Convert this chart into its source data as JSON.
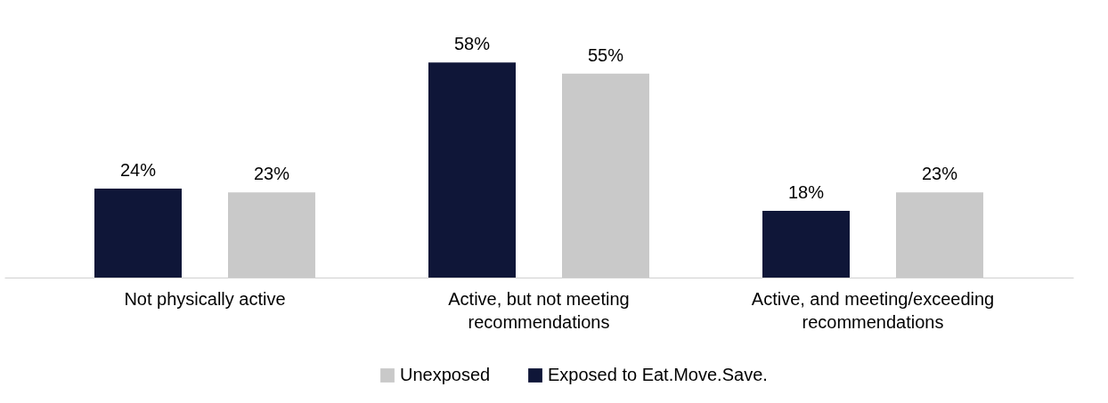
{
  "chart_data": {
    "type": "bar",
    "categories": [
      "Not physically active",
      "Active, but not meeting recommendations",
      "Active, and meeting/exceeding recommendations"
    ],
    "series": [
      {
        "name": "Exposed to Eat.Move.Save.",
        "color": "#0f1638",
        "values": [
          24,
          58,
          18
        ],
        "value_labels": [
          "24%",
          "58%",
          "18%"
        ]
      },
      {
        "name": "Unexposed",
        "color": "#c9c9c9",
        "values": [
          23,
          55,
          23
        ],
        "value_labels": [
          "23%",
          "55%",
          "23%"
        ]
      }
    ],
    "legend": "bottom"
  }
}
